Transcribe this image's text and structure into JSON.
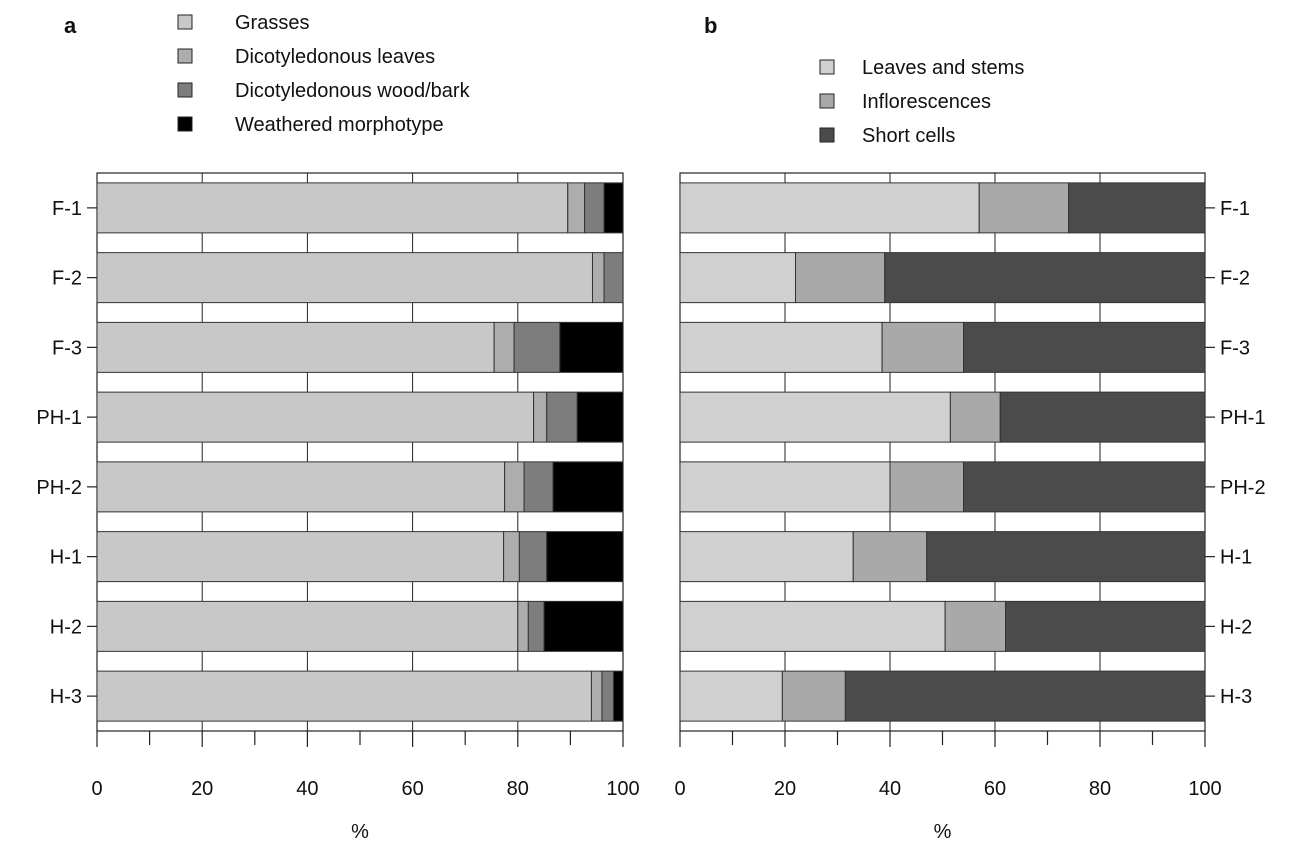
{
  "chart_data": [
    {
      "type": "bar",
      "orientation": "horizontal",
      "stacked": true,
      "panel_label": "a",
      "categories": [
        "F-1",
        "F-2",
        "F-3",
        "PH-1",
        "PH-2",
        "H-1",
        "H-2",
        "H-3"
      ],
      "series": [
        {
          "name": "Grasses",
          "color": "#c8c8c8",
          "values": [
            89.5,
            94.2,
            75.5,
            83.0,
            77.5,
            77.3,
            80.0,
            94.0
          ]
        },
        {
          "name": "Dicotyledonous leaves",
          "color": "#adadad",
          "values": [
            3.2,
            2.2,
            3.8,
            2.5,
            3.7,
            3.0,
            2.0,
            2.0
          ]
        },
        {
          "name": "Dicotyledonous wood/bark",
          "color": "#7d7d7d",
          "values": [
            3.7,
            3.6,
            8.7,
            5.8,
            5.5,
            5.2,
            3.0,
            2.2
          ]
        },
        {
          "name": "Weathered morphotype",
          "color": "#000000",
          "values": [
            3.6,
            0.0,
            12.0,
            8.7,
            13.3,
            14.5,
            15.0,
            1.8
          ]
        }
      ],
      "xlabel": "%",
      "xlim": [
        0,
        100
      ],
      "xticks": [
        0,
        20,
        40,
        60,
        80,
        100
      ],
      "grid": "vertical every 20",
      "legend_position": "top"
    },
    {
      "type": "bar",
      "orientation": "horizontal",
      "stacked": true,
      "panel_label": "b",
      "categories": [
        "F-1",
        "F-2",
        "F-3",
        "PH-1",
        "PH-2",
        "H-1",
        "H-2",
        "H-3"
      ],
      "series": [
        {
          "name": "Leaves and stems",
          "color": "#d0d0d0",
          "values": [
            57.0,
            22.0,
            38.5,
            51.5,
            40.0,
            33.0,
            50.5,
            19.5
          ]
        },
        {
          "name": "Inflorescences",
          "color": "#a9a9a9",
          "values": [
            17.0,
            17.0,
            15.5,
            9.5,
            14.0,
            14.0,
            11.5,
            12.0
          ]
        },
        {
          "name": "Short cells",
          "color": "#4b4b4b",
          "values": [
            26.0,
            61.0,
            46.0,
            39.0,
            46.0,
            53.0,
            38.0,
            68.5
          ]
        }
      ],
      "xlabel": "%",
      "xlim": [
        0,
        100
      ],
      "xticks": [
        0,
        20,
        40,
        60,
        80,
        100
      ],
      "grid": "vertical every 20",
      "legend_position": "top",
      "category_labels_side": "right"
    }
  ]
}
